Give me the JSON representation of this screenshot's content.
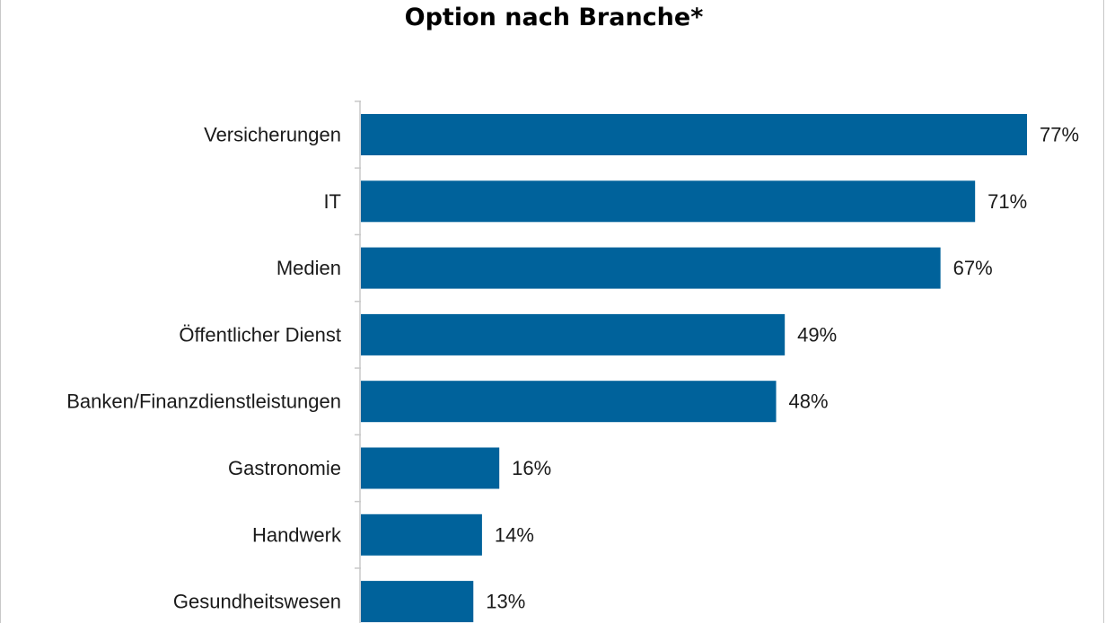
{
  "chart_data": {
    "type": "bar",
    "orientation": "horizontal",
    "title": "Option nach Branche*",
    "categories": [
      "Versicherungen",
      "IT",
      "Medien",
      "Öffentlicher Dienst",
      "Banken/Finanzdienstleistungen",
      "Gastronomie",
      "Handwerk",
      "Gesundheitswesen"
    ],
    "values": [
      77,
      71,
      67,
      49,
      48,
      16,
      14,
      13
    ],
    "value_labels": [
      "77%",
      "71%",
      "67%",
      "49%",
      "48%",
      "16%",
      "14%",
      "13%"
    ],
    "unit": "%",
    "xlim": [
      0,
      100
    ],
    "grid": false,
    "legend": "none",
    "bar_color": "#00629b"
  }
}
